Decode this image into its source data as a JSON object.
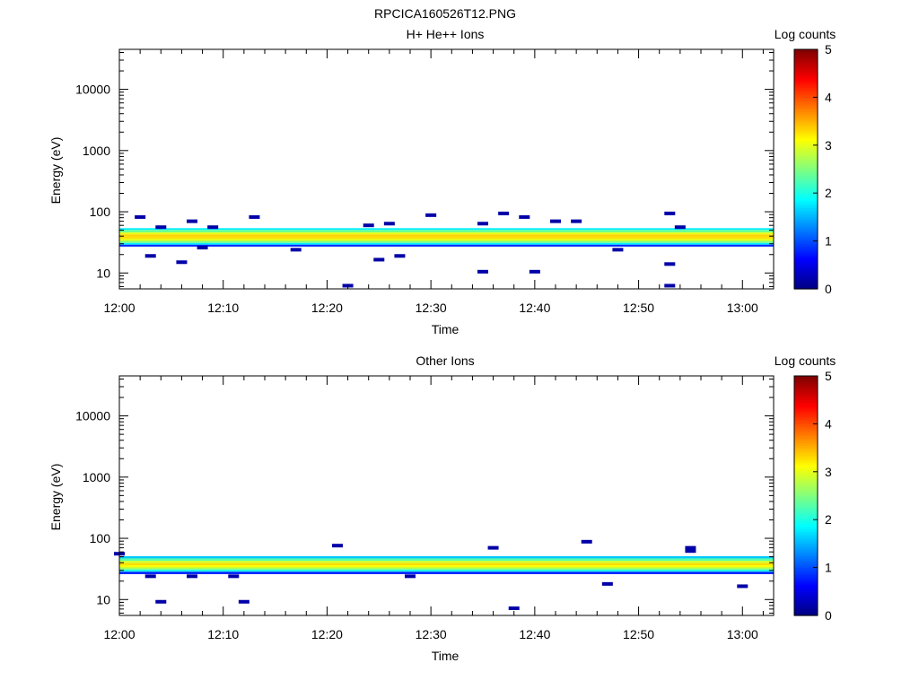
{
  "figure_title": "RPCICA160526T12.PNG",
  "chart_data": [
    {
      "type": "heatmap",
      "title": "H+ He++ Ions",
      "xlabel": "Time",
      "ylabel": "Energy (eV)",
      "x_scale": "time",
      "y_scale": "log",
      "xlim": [
        "12:00",
        "13:03"
      ],
      "ylim": [
        5.5,
        45000
      ],
      "x_ticks": [
        "12:00",
        "12:10",
        "12:20",
        "12:30",
        "12:40",
        "12:50",
        "13:00"
      ],
      "y_ticks": [
        {
          "value": 10,
          "label": "10"
        },
        {
          "value": 100,
          "label": "100"
        },
        {
          "value": 1000,
          "label": "1000"
        },
        {
          "value": 10000,
          "label": "10000"
        }
      ],
      "colorbar": {
        "label": "Log counts",
        "range": [
          0,
          5
        ],
        "ticks": [
          "0",
          "1",
          "2",
          "3",
          "4",
          "5"
        ],
        "colormap": "jet"
      },
      "band": {
        "start": "12:00",
        "end": "13:03",
        "energy_min": 27,
        "energy_max": 54,
        "profile": [
          {
            "energy": 53,
            "level": 1.8
          },
          {
            "energy": 48,
            "level": 2.4
          },
          {
            "energy": 44,
            "level": 3.0
          },
          {
            "energy": 41,
            "level": 3.35
          },
          {
            "energy": 38,
            "level": 3.3
          },
          {
            "energy": 35,
            "level": 3.0
          },
          {
            "energy": 32,
            "level": 2.5
          },
          {
            "energy": 30,
            "level": 1.8
          },
          {
            "energy": 28,
            "level": 0.8
          }
        ]
      },
      "sparse_points": [
        {
          "time": "12:02",
          "energy": 82,
          "level": 0.2
        },
        {
          "time": "12:03",
          "energy": 19,
          "level": 0.2
        },
        {
          "time": "12:04",
          "energy": 56,
          "level": 0.2
        },
        {
          "time": "12:06",
          "energy": 15,
          "level": 0.2
        },
        {
          "time": "12:07",
          "energy": 70,
          "level": 0.2
        },
        {
          "time": "12:08",
          "energy": 26,
          "level": 0.2
        },
        {
          "time": "12:09",
          "energy": 56,
          "level": 0.2
        },
        {
          "time": "12:13",
          "energy": 82,
          "level": 0.2
        },
        {
          "time": "12:17",
          "energy": 24,
          "level": 0.2
        },
        {
          "time": "12:22",
          "energy": 6.2,
          "level": 0.2
        },
        {
          "time": "12:24",
          "energy": 60,
          "level": 0.2
        },
        {
          "time": "12:25",
          "energy": 16.5,
          "level": 0.2
        },
        {
          "time": "12:26",
          "energy": 64,
          "level": 0.2
        },
        {
          "time": "12:27",
          "energy": 19,
          "level": 0.2
        },
        {
          "time": "12:30",
          "energy": 88,
          "level": 0.2
        },
        {
          "time": "12:35",
          "energy": 10.5,
          "level": 0.2
        },
        {
          "time": "12:35",
          "energy": 64,
          "level": 0.2
        },
        {
          "time": "12:37",
          "energy": 94,
          "level": 0.2
        },
        {
          "time": "12:39",
          "energy": 82,
          "level": 0.2
        },
        {
          "time": "12:40",
          "energy": 10.5,
          "level": 0.2
        },
        {
          "time": "12:42",
          "energy": 70,
          "level": 0.2
        },
        {
          "time": "12:44",
          "energy": 70,
          "level": 0.2
        },
        {
          "time": "12:48",
          "energy": 24,
          "level": 0.2
        },
        {
          "time": "12:53",
          "energy": 94,
          "level": 0.2
        },
        {
          "time": "12:53",
          "energy": 14,
          "level": 0.2
        },
        {
          "time": "12:53",
          "energy": 6.2,
          "level": 0.2
        },
        {
          "time": "12:54",
          "energy": 56,
          "level": 0.2
        }
      ]
    },
    {
      "type": "heatmap",
      "title": "Other Ions",
      "xlabel": "Time",
      "ylabel": "Energy (eV)",
      "x_scale": "time",
      "y_scale": "log",
      "xlim": [
        "12:00",
        "13:03"
      ],
      "ylim": [
        5.5,
        45000
      ],
      "x_ticks": [
        "12:00",
        "12:10",
        "12:20",
        "12:30",
        "12:40",
        "12:50",
        "13:00"
      ],
      "y_ticks": [
        {
          "value": 10,
          "label": "10"
        },
        {
          "value": 100,
          "label": "100"
        },
        {
          "value": 1000,
          "label": "1000"
        },
        {
          "value": 10000,
          "label": "10000"
        }
      ],
      "colorbar": {
        "label": "Log counts",
        "range": [
          0,
          5
        ],
        "ticks": [
          "0",
          "1",
          "2",
          "3",
          "4",
          "5"
        ],
        "colormap": "jet"
      },
      "band": {
        "start": "12:00",
        "end": "13:03",
        "energy_min": 26,
        "energy_max": 51,
        "profile": [
          {
            "energy": 49,
            "level": 1.6
          },
          {
            "energy": 45,
            "level": 2.3
          },
          {
            "energy": 41,
            "level": 2.9
          },
          {
            "energy": 38,
            "level": 3.3
          },
          {
            "energy": 35,
            "level": 3.1
          },
          {
            "energy": 32,
            "level": 2.7
          },
          {
            "energy": 30,
            "level": 2.0
          },
          {
            "energy": 27,
            "level": 0.8
          }
        ]
      },
      "sparse_points": [
        {
          "time": "12:00",
          "energy": 56,
          "level": 0.2
        },
        {
          "time": "12:03",
          "energy": 24,
          "level": 0.2
        },
        {
          "time": "12:04",
          "energy": 9.2,
          "level": 0.2
        },
        {
          "time": "12:07",
          "energy": 24,
          "level": 0.2
        },
        {
          "time": "12:11",
          "energy": 24,
          "level": 0.2
        },
        {
          "time": "12:12",
          "energy": 9.2,
          "level": 0.2
        },
        {
          "time": "12:21",
          "energy": 76,
          "level": 0.2
        },
        {
          "time": "12:28",
          "energy": 24,
          "level": 0.2
        },
        {
          "time": "12:36",
          "energy": 70,
          "level": 0.2
        },
        {
          "time": "12:38",
          "energy": 7.2,
          "level": 0.2
        },
        {
          "time": "12:45",
          "energy": 88,
          "level": 0.2
        },
        {
          "time": "12:47",
          "energy": 18,
          "level": 0.2
        },
        {
          "time": "12:55",
          "energy": 70,
          "level": 0.2
        },
        {
          "time": "12:55",
          "energy": 62,
          "level": 0.2
        },
        {
          "time": "13:00",
          "energy": 16.5,
          "level": 0.2
        }
      ]
    }
  ]
}
